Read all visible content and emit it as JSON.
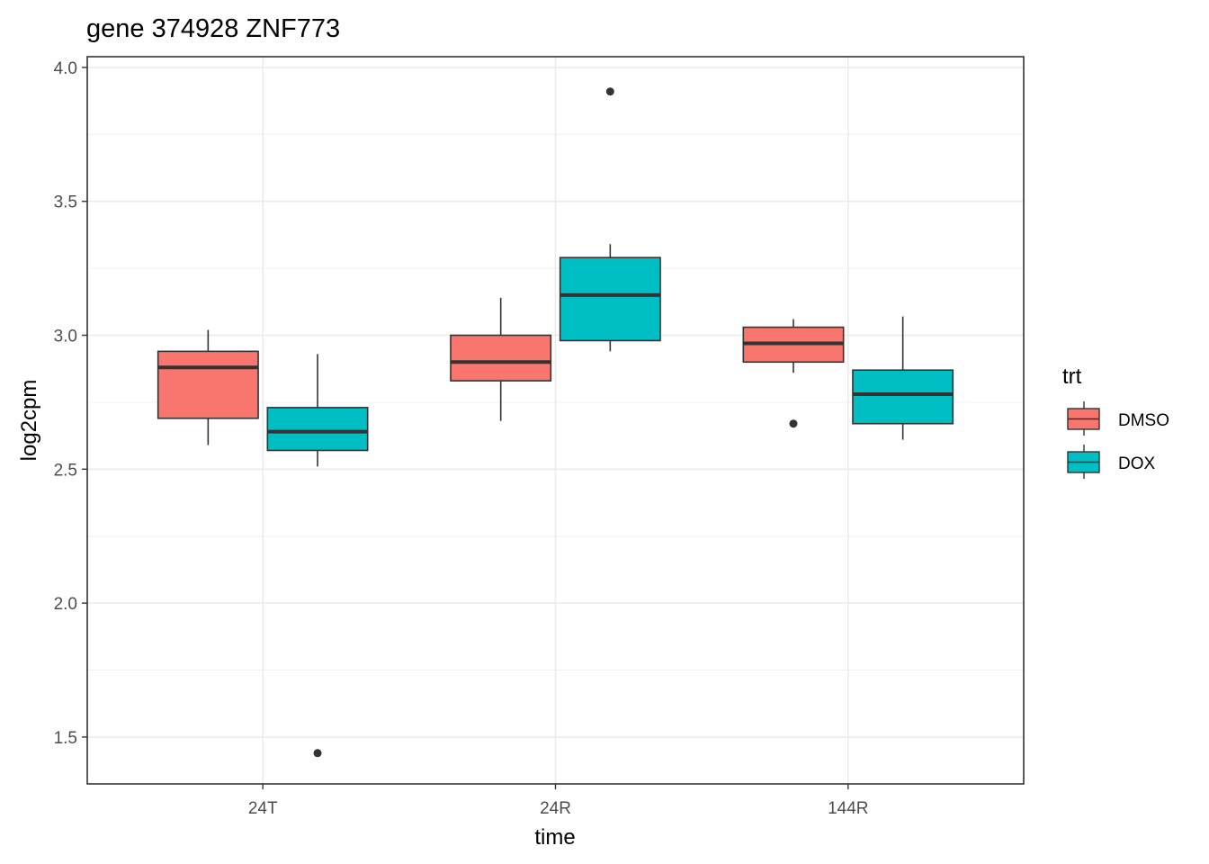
{
  "chart_data": {
    "type": "boxplot",
    "title": "gene 374928 ZNF773",
    "xlabel": "time",
    "ylabel": "log2cpm",
    "categories": [
      "24T",
      "24R",
      "144R"
    ],
    "ylim": [
      1.325,
      4.04
    ],
    "yticks": [
      1.5,
      2.0,
      2.5,
      3.0,
      3.5,
      4.0
    ],
    "ytick_labels": [
      "1.5",
      "2.0",
      "2.5",
      "3.0",
      "3.5",
      "4.0"
    ],
    "grid": true,
    "legend": {
      "title": "trt",
      "position": "right"
    },
    "series": [
      {
        "name": "DMSO",
        "color": "#F8766D",
        "boxes": [
          {
            "category": "24T",
            "whisker_low": 2.59,
            "q1": 2.69,
            "median": 2.88,
            "q3": 2.94,
            "whisker_high": 3.02,
            "outliers": []
          },
          {
            "category": "24R",
            "whisker_low": 2.68,
            "q1": 2.83,
            "median": 2.9,
            "q3": 3.0,
            "whisker_high": 3.14,
            "outliers": []
          },
          {
            "category": "144R",
            "whisker_low": 2.86,
            "q1": 2.9,
            "median": 2.97,
            "q3": 3.03,
            "whisker_high": 3.06,
            "outliers": [
              2.67
            ]
          }
        ]
      },
      {
        "name": "DOX",
        "color": "#00BFC4",
        "boxes": [
          {
            "category": "24T",
            "whisker_low": 2.51,
            "q1": 2.57,
            "median": 2.64,
            "q3": 2.73,
            "whisker_high": 2.93,
            "outliers": [
              1.44
            ]
          },
          {
            "category": "24R",
            "whisker_low": 2.94,
            "q1": 2.98,
            "median": 3.15,
            "q3": 3.29,
            "whisker_high": 3.34,
            "outliers": [
              3.91
            ]
          },
          {
            "category": "144R",
            "whisker_low": 2.61,
            "q1": 2.67,
            "median": 2.78,
            "q3": 2.87,
            "whisker_high": 3.07,
            "outliers": []
          }
        ]
      }
    ]
  }
}
